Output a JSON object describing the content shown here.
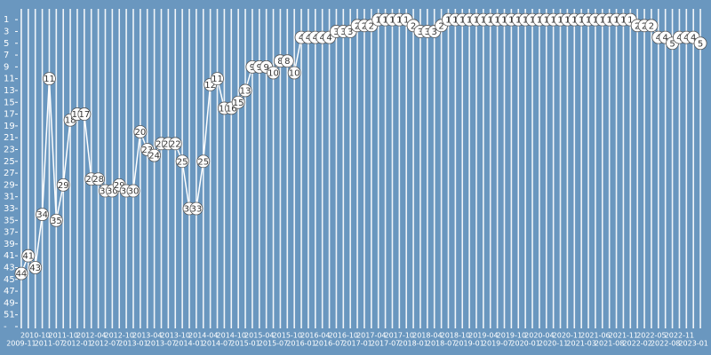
{
  "chart_data": {
    "type": "line",
    "categories": [
      "2009-11",
      null,
      "2010-10",
      null,
      "2011-07",
      null,
      "2011-10",
      null,
      "2012-01",
      null,
      "2012-04",
      null,
      "2012-07",
      null,
      "2012-10",
      null,
      "2013-01",
      null,
      "2013-04",
      null,
      "2013-07",
      null,
      "2013-10",
      null,
      "2014-01",
      null,
      "2014-04",
      null,
      "2014-07",
      null,
      "2014-10",
      null,
      "2015-01",
      null,
      "2015-04",
      null,
      "2015-07",
      null,
      "2015-10",
      null,
      "2016-01",
      null,
      "2016-04",
      null,
      "2016-07",
      null,
      "2016-10",
      null,
      "2017-01",
      null,
      "2017-04",
      null,
      "2017-07",
      null,
      "2017-10",
      null,
      "2018-01",
      null,
      "2018-04",
      null,
      "2018-07",
      null,
      "2018-10",
      null,
      "2019-01",
      null,
      "2019-04",
      null,
      "2019-07",
      null,
      "2019-10",
      null,
      "2020-01",
      null,
      "2020-04",
      null,
      "2020-11",
      null,
      "2020-11",
      null,
      "2021-03",
      null,
      "2021-06",
      null,
      "2021-08",
      null,
      "2021-11",
      null,
      "2022-02",
      null,
      "2022-05",
      null,
      "2022-08",
      null,
      "2022-11",
      null,
      "2023-01",
      null
    ],
    "values": [
      44,
      41,
      43,
      34,
      11,
      35,
      29,
      18,
      17,
      17,
      28,
      28,
      30,
      30,
      29,
      30,
      30,
      20,
      23,
      24,
      22,
      22,
      22,
      25,
      33,
      33,
      25,
      12,
      11,
      16,
      16,
      15,
      13,
      9,
      9,
      9,
      10,
      8,
      8,
      10,
      4,
      4,
      4,
      4,
      4,
      3,
      3,
      3,
      2,
      2,
      2,
      1,
      1,
      1,
      1,
      1,
      2,
      3,
      3,
      3,
      2,
      1,
      1,
      1,
      1,
      1,
      1,
      1,
      1,
      1,
      1,
      1,
      1,
      1,
      1,
      1,
      1,
      1,
      1,
      1,
      1,
      1,
      1,
      1,
      1,
      1,
      1,
      1,
      2,
      2,
      2,
      4,
      4,
      5,
      4,
      4,
      4,
      5
    ],
    "color": "#ffffff",
    "ylim": [
      0,
      53
    ],
    "y_reversed": true,
    "yticks": [
      1,
      3,
      5,
      7,
      9,
      11,
      13,
      15,
      17,
      19,
      21,
      23,
      25,
      27,
      29,
      31,
      33,
      35,
      37,
      39,
      41,
      43,
      45,
      47,
      49,
      51,
      {
        "value": 53,
        "label": "-"
      }
    ],
    "grid": true
  }
}
